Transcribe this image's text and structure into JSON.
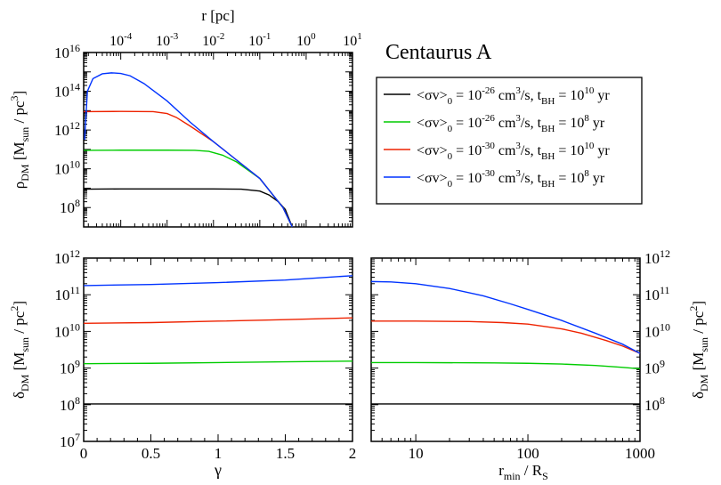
{
  "title": "Centaurus A",
  "chart_data": [
    {
      "id": "density",
      "type": "line",
      "ylabel_sym": "ρ",
      "ylabel_sub": "DM",
      "ylabel_open": " [M",
      "ylabel_sub2": "sun",
      "ylabel_close": " / pc",
      "ylabel_sup": "3",
      "ylabel_end": "]",
      "xlabel_top": "r [pc]",
      "xscale": "log",
      "xlim_log": [
        -4.8,
        1
      ],
      "yscale": "log",
      "ylim": [
        10000000.0,
        1e+16
      ],
      "x_ticks": [
        {
          "base": "10",
          "exp": "-4",
          "logv": -4
        },
        {
          "base": "10",
          "exp": "-3",
          "logv": -3
        },
        {
          "base": "10",
          "exp": "-2",
          "logv": -2
        },
        {
          "base": "10",
          "exp": "-1",
          "logv": -1
        },
        {
          "base": "10",
          "exp": "0",
          "logv": 0
        },
        {
          "base": "10",
          "exp": "1",
          "logv": 1
        }
      ],
      "y_ticks": [
        {
          "base": "10",
          "exp": "8",
          "logv": 8
        },
        {
          "base": "10",
          "exp": "10",
          "logv": 10
        },
        {
          "base": "10",
          "exp": "12",
          "logv": 12
        },
        {
          "base": "10",
          "exp": "14",
          "logv": 14
        },
        {
          "base": "10",
          "exp": "16",
          "logv": 16
        }
      ],
      "series": [
        {
          "name": "black",
          "color": "#000000",
          "log_r": [
            -4.8,
            -4.0,
            -3.0,
            -2.0,
            -1.4,
            -1.0,
            -0.8,
            -0.6,
            -0.45,
            -0.3
          ],
          "log_rho": [
            8.95,
            8.96,
            8.96,
            8.96,
            8.95,
            8.85,
            8.65,
            8.3,
            7.9,
            7.0
          ]
        },
        {
          "name": "green",
          "color": "#00cc00",
          "log_r": [
            -4.8,
            -4.0,
            -3.0,
            -2.4,
            -2.1,
            -1.8,
            -1.5,
            -1.0,
            -0.5,
            -0.3
          ],
          "log_rho": [
            10.95,
            10.96,
            10.96,
            10.95,
            10.9,
            10.7,
            10.35,
            9.5,
            8.0,
            7.0
          ]
        },
        {
          "name": "red",
          "color": "#ee2200",
          "log_r": [
            -4.8,
            -4.0,
            -3.3,
            -3.0,
            -2.8,
            -2.5,
            -2.0,
            -1.5,
            -1.0,
            -0.5,
            -0.3
          ],
          "log_rho": [
            12.95,
            12.96,
            12.95,
            12.85,
            12.65,
            12.2,
            11.4,
            10.45,
            9.5,
            8.0,
            7.0
          ]
        },
        {
          "name": "blue",
          "color": "#0033ff",
          "log_r": [
            -4.78,
            -4.72,
            -4.6,
            -4.4,
            -4.2,
            -4.0,
            -3.8,
            -3.5,
            -3.0,
            -2.5,
            -2.0,
            -1.5,
            -1.0,
            -0.5,
            -0.3
          ],
          "log_rho": [
            11.5,
            14.0,
            14.65,
            14.9,
            14.95,
            14.92,
            14.8,
            14.4,
            13.5,
            12.4,
            11.4,
            10.45,
            9.5,
            8.0,
            7.0
          ]
        }
      ]
    },
    {
      "id": "gamma",
      "type": "line",
      "xlabel": "γ",
      "ylabel_sym": "δ",
      "ylabel_sub": "DM",
      "ylabel_open": " [M",
      "ylabel_sub2": "sun",
      "ylabel_close": " / pc",
      "ylabel_sup": "2",
      "ylabel_end": "]",
      "xscale": "linear",
      "xlim": [
        0,
        2
      ],
      "yscale": "log",
      "ylim": [
        10000000.0,
        1000000000000.0
      ],
      "x_ticks": [
        "0",
        "0.5",
        "1",
        "1.5",
        "2"
      ],
      "y_ticks": [
        {
          "base": "10",
          "exp": "7",
          "logv": 7
        },
        {
          "base": "10",
          "exp": "8",
          "logv": 8
        },
        {
          "base": "10",
          "exp": "9",
          "logv": 9
        },
        {
          "base": "10",
          "exp": "10",
          "logv": 10
        },
        {
          "base": "10",
          "exp": "11",
          "logv": 11
        },
        {
          "base": "10",
          "exp": "12",
          "logv": 12
        }
      ],
      "series": [
        {
          "name": "black",
          "color": "#000000",
          "x": [
            0,
            0.5,
            1,
            1.5,
            2
          ],
          "log_delta": [
            8.02,
            8.02,
            8.02,
            8.02,
            8.02
          ]
        },
        {
          "name": "green",
          "color": "#00cc00",
          "x": [
            0,
            0.5,
            1,
            1.5,
            2
          ],
          "log_delta": [
            9.12,
            9.13,
            9.15,
            9.17,
            9.19
          ]
        },
        {
          "name": "red",
          "color": "#ee2200",
          "x": [
            0,
            0.5,
            1,
            1.5,
            2
          ],
          "log_delta": [
            10.22,
            10.24,
            10.28,
            10.32,
            10.37
          ]
        },
        {
          "name": "blue",
          "color": "#0033ff",
          "x": [
            0,
            0.5,
            1,
            1.5,
            2
          ],
          "log_delta": [
            11.25,
            11.28,
            11.33,
            11.4,
            11.52
          ]
        }
      ]
    },
    {
      "id": "rmin",
      "type": "line",
      "xlabel_r": "r",
      "xlabel_sub": "min",
      "xlabel_mid": " / R",
      "xlabel_sub2": "S",
      "ylabel_sym": "δ",
      "ylabel_sub": "DM",
      "ylabel_open": " [M",
      "ylabel_sub2": "sun",
      "ylabel_close": " / pc",
      "ylabel_sup": "2",
      "ylabel_end": "]",
      "xscale": "log",
      "xlim": [
        4,
        1000
      ],
      "yscale": "log",
      "ylim": [
        10000000.0,
        1000000000000.0
      ],
      "x_ticks": [
        {
          "label": "10",
          "value": 10
        },
        {
          "label": "100",
          "value": 100
        },
        {
          "label": "1000",
          "value": 1000
        }
      ],
      "y_ticks": [
        {
          "base": "10",
          "exp": "8",
          "logv": 8
        },
        {
          "base": "10",
          "exp": "9",
          "logv": 9
        },
        {
          "base": "10",
          "exp": "10",
          "logv": 10
        },
        {
          "base": "10",
          "exp": "11",
          "logv": 11
        },
        {
          "base": "10",
          "exp": "12",
          "logv": 12
        }
      ],
      "series": [
        {
          "name": "black",
          "color": "#000000",
          "x": [
            4,
            10,
            100,
            1000
          ],
          "log_delta": [
            8.02,
            8.02,
            8.02,
            8.02
          ]
        },
        {
          "name": "green",
          "color": "#00cc00",
          "x": [
            4,
            10,
            50,
            100,
            200,
            400,
            700,
            1000
          ],
          "log_delta": [
            9.15,
            9.15,
            9.14,
            9.13,
            9.11,
            9.07,
            9.02,
            8.98
          ]
        },
        {
          "name": "red",
          "color": "#ee2200",
          "x": [
            4,
            10,
            30,
            60,
            100,
            200,
            300,
            500,
            700,
            1000
          ],
          "log_delta": [
            10.28,
            10.28,
            10.27,
            10.24,
            10.2,
            10.07,
            9.95,
            9.75,
            9.6,
            9.4
          ]
        },
        {
          "name": "blue",
          "color": "#0033ff",
          "x": [
            4,
            6,
            10,
            20,
            40,
            70,
            100,
            200,
            400,
            700,
            1000
          ],
          "log_delta": [
            11.36,
            11.35,
            11.3,
            11.17,
            10.97,
            10.75,
            10.6,
            10.3,
            9.95,
            9.65,
            9.4
          ]
        }
      ]
    }
  ],
  "legend": [
    {
      "color": "#000000",
      "sv": "<σv>",
      "sv_sub": "0",
      "eq": " = 10",
      "sv_exp": "-26",
      "units": " cm",
      "cm_exp": "3",
      "mid": "/s,  t",
      "t_sub": "BH",
      "eq2": " = 10",
      "t_exp": "10",
      "yr": " yr"
    },
    {
      "color": "#00cc00",
      "sv": "<σv>",
      "sv_sub": "0",
      "eq": " = 10",
      "sv_exp": "-26",
      "units": " cm",
      "cm_exp": "3",
      "mid": "/s,  t",
      "t_sub": "BH",
      "eq2": " = 10",
      "t_exp": "8",
      "yr": " yr"
    },
    {
      "color": "#ee2200",
      "sv": "<σv>",
      "sv_sub": "0",
      "eq": " = 10",
      "sv_exp": "-30",
      "units": " cm",
      "cm_exp": "3",
      "mid": "/s,  t",
      "t_sub": "BH",
      "eq2": " = 10",
      "t_exp": "10",
      "yr": " yr"
    },
    {
      "color": "#0033ff",
      "sv": "<σv>",
      "sv_sub": "0",
      "eq": " = 10",
      "sv_exp": "-30",
      "units": " cm",
      "cm_exp": "3",
      "mid": "/s,  t",
      "t_sub": "BH",
      "eq2": " = 10",
      "t_exp": "8",
      "yr": " yr"
    }
  ]
}
